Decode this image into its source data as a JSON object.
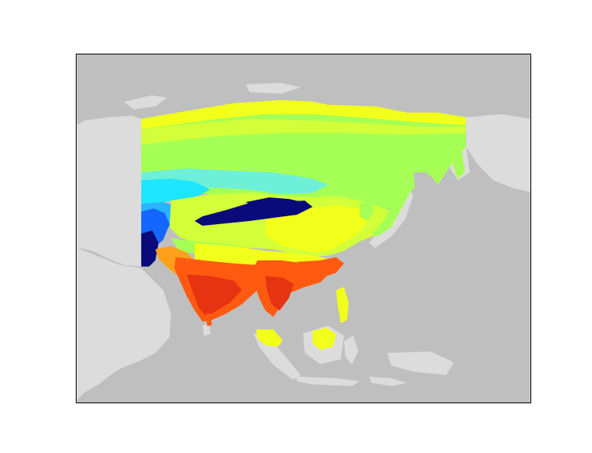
{
  "map": {
    "colors": {
      "ocean": "#bfbfbf",
      "land": "#dcdcdc",
      "frame": "#000000"
    },
    "colormap": "jet",
    "legend_visible": false,
    "palette": {
      "dark_blue": "#0a0a7a",
      "blue": "#1565ff",
      "light_blue": "#2ab4ff",
      "cyan": "#1ee6ff",
      "aqua": "#6ef0d8",
      "green": "#a6ff55",
      "yellow_green": "#d2ff3a",
      "yellow": "#f2ff1a",
      "orange": "#ffa01a",
      "red_orange": "#ff5a10",
      "red": "#e63312"
    }
  }
}
